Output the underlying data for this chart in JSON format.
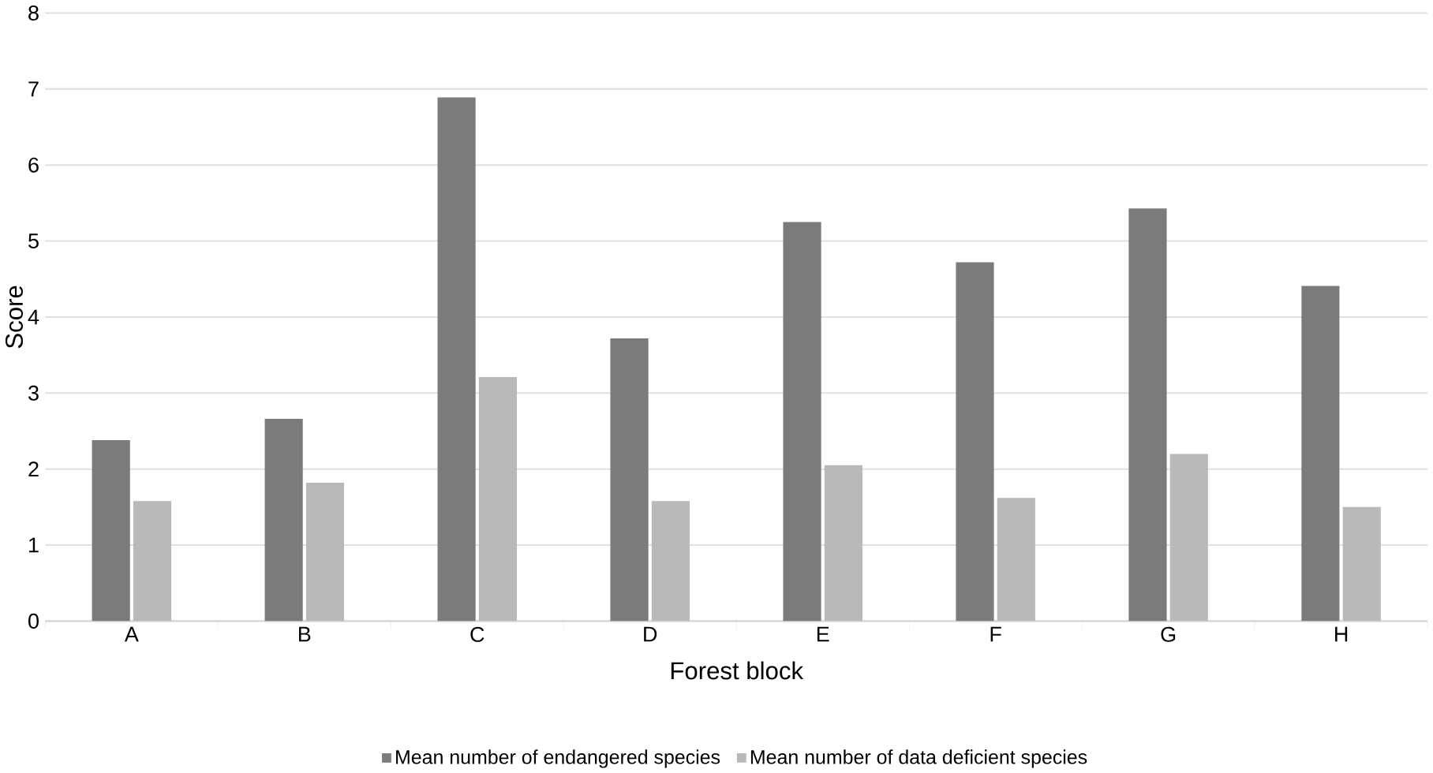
{
  "chart_data": {
    "type": "bar",
    "xlabel": "Forest block",
    "ylabel": "Score",
    "categories": [
      "A",
      "B",
      "C",
      "D",
      "E",
      "F",
      "G",
      "H"
    ],
    "series": [
      {
        "name": "Mean number of endangered species",
        "color": "#7b7b7b",
        "values": [
          2.38,
          2.66,
          6.89,
          3.72,
          5.25,
          4.72,
          5.43,
          4.41
        ]
      },
      {
        "name": "Mean number of data deficient species",
        "color": "#b8b9bb",
        "values": [
          1.58,
          1.82,
          3.21,
          1.58,
          2.05,
          1.62,
          2.2,
          1.5
        ]
      }
    ],
    "ylim": [
      0,
      8
    ],
    "yticks": [
      0,
      1,
      2,
      3,
      4,
      5,
      6,
      7,
      8
    ],
    "grid": "y",
    "legend": "bottom"
  }
}
